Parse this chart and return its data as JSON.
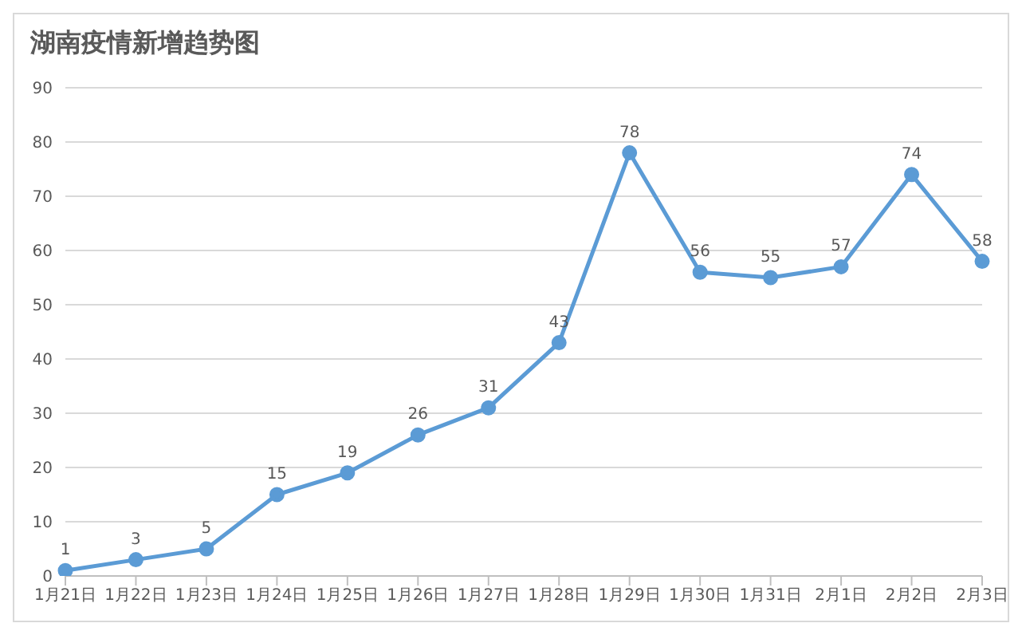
{
  "chart_data": {
    "type": "line",
    "title": "湖南疫情新增趋势图",
    "categories": [
      "1月21日",
      "1月22日",
      "1月23日",
      "1月24日",
      "1月25日",
      "1月26日",
      "1月27日",
      "1月28日",
      "1月29日",
      "1月30日",
      "1月31日",
      "2月1日",
      "2月2日",
      "2月3日"
    ],
    "series": [
      {
        "color": "#5b9bd5",
        "values": [
          1,
          3,
          5,
          15,
          19,
          26,
          31,
          43,
          78,
          56,
          55,
          57,
          74,
          58
        ]
      }
    ],
    "ylim": [
      0,
      90
    ],
    "yticks": [
      0,
      10,
      20,
      30,
      40,
      50,
      60,
      70,
      80,
      90
    ],
    "grid": "y",
    "marker": "circle",
    "line_style": "solid",
    "data_labels": true,
    "legend": false
  }
}
